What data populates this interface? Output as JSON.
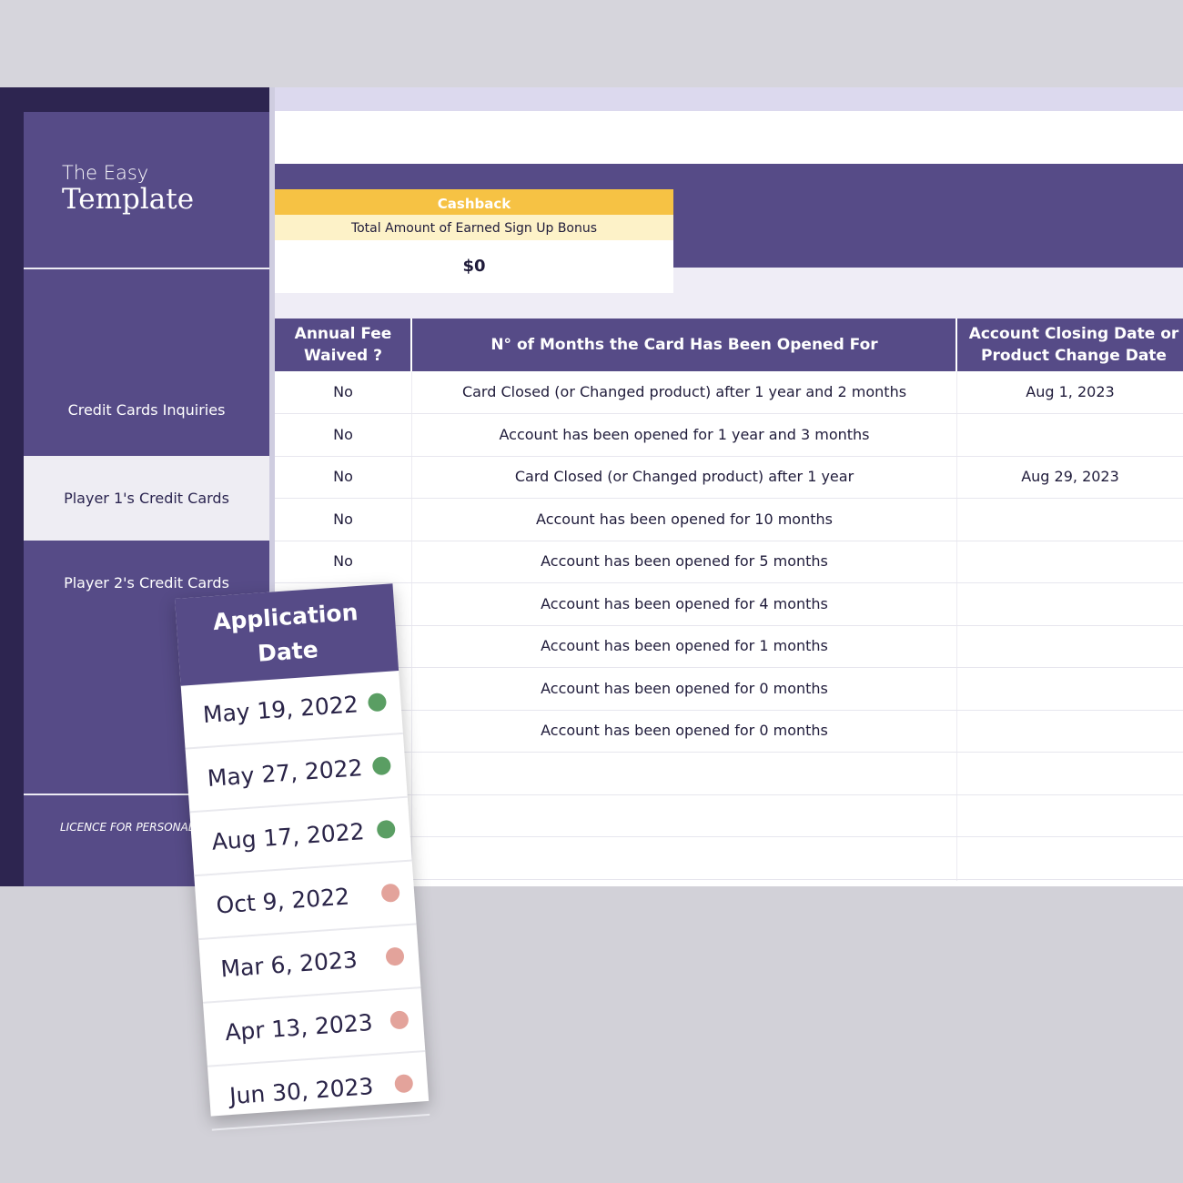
{
  "sidebar": {
    "logo_line1": "The Easy",
    "logo_line2": "Template",
    "items": [
      {
        "label": "Credit Cards Inquiries"
      },
      {
        "label": "Player 1's Credit Cards"
      },
      {
        "label": "Player 2's Credit Cards"
      }
    ],
    "licence": "LICENCE FOR PERSONAL U"
  },
  "cashback": {
    "title": "Cashback",
    "subtitle": "Total Amount of Earned Sign Up Bonus",
    "value": "$0"
  },
  "table": {
    "headers": [
      "Annual Fee\nWaived ?",
      "N° of Months the Card Has Been Opened For",
      "Account Closing Date or\nProduct Change Date"
    ],
    "rows": [
      [
        "No",
        "Card Closed (or Changed product) after 1 year and 2 months",
        "Aug 1, 2023"
      ],
      [
        "No",
        "Account has been opened for 1 year and 3 months",
        ""
      ],
      [
        "No",
        "Card Closed (or Changed product) after 1 year",
        "Aug 29, 2023"
      ],
      [
        "No",
        "Account has been opened for 10 months",
        ""
      ],
      [
        "No",
        "Account has been opened for 5 months",
        ""
      ],
      [
        "",
        "Account has been opened for 4 months",
        ""
      ],
      [
        "",
        "Account has been opened for 1 months",
        ""
      ],
      [
        "",
        "Account has been opened for 0 months",
        ""
      ],
      [
        "",
        "Account has been opened for 0 months",
        ""
      ],
      [
        "",
        "",
        ""
      ],
      [
        "",
        "",
        ""
      ],
      [
        "",
        "",
        ""
      ]
    ]
  },
  "application": {
    "header_line1": "Application",
    "header_line2": "Date",
    "dates": [
      {
        "date": "May 19, 2022",
        "status": "green"
      },
      {
        "date": "May 27, 2022",
        "status": "green"
      },
      {
        "date": "Aug 17, 2022",
        "status": "green"
      },
      {
        "date": "Oct 9, 2022",
        "status": "red"
      },
      {
        "date": "Mar 6, 2023",
        "status": "red"
      },
      {
        "date": "Apr 13, 2023",
        "status": "red"
      },
      {
        "date": "Jun 30, 2023",
        "status": "red"
      }
    ]
  },
  "colors": {
    "primary": "#564b87",
    "dark": "#2d2550",
    "accent_yellow": "#f6c244",
    "status_green": "#5a9e63",
    "status_red": "#e3a39b"
  }
}
